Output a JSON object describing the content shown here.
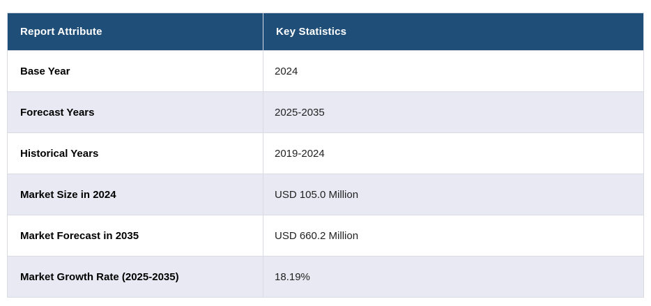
{
  "chart_data": {
    "type": "table",
    "columns": [
      "Report Attribute",
      "Key Statistics"
    ],
    "rows": [
      [
        "Base Year",
        "2024"
      ],
      [
        "Forecast Years",
        "2025-2035"
      ],
      [
        "Historical Years",
        "2019-2024"
      ],
      [
        "Market Size in 2024",
        "USD 105.0 Million"
      ],
      [
        "Market Forecast in 2035",
        "USD 660.2 Million"
      ],
      [
        "Market Growth Rate (2025-2035)",
        "18.19%"
      ]
    ],
    "layout": {
      "header_position": "top",
      "alternating_rows": true,
      "grid": true
    }
  },
  "colors": {
    "header_bg": "#1F4E78",
    "header_text": "#FFFFFF",
    "row_bg": "#FFFFFF",
    "row_alt_bg": "#E8E9F3",
    "border": "#D9DBE4",
    "attribute_text": "#000000",
    "value_text": "#222222"
  }
}
